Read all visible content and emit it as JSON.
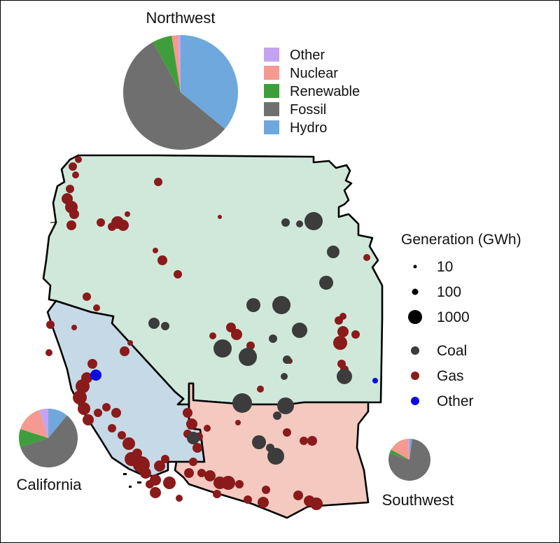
{
  "regions": {
    "northwest": {
      "label": "Northwest",
      "fill": "#cfe8da"
    },
    "california": {
      "label": "California",
      "fill": "#c6d9e6"
    },
    "southwest": {
      "label": "Southwest",
      "fill": "#f3c9c0"
    }
  },
  "fuel_legend": {
    "items": [
      {
        "label": "Other",
        "color": "#c5a3f2"
      },
      {
        "label": "Nuclear",
        "color": "#f59a90"
      },
      {
        "label": "Renewable",
        "color": "#3f9e3c"
      },
      {
        "label": "Fossil",
        "color": "#6f6f6f"
      },
      {
        "label": "Hydro",
        "color": "#6fa8dc"
      }
    ]
  },
  "plant_legend": {
    "title": "Generation (GWh)",
    "sizes": [
      {
        "label": "10",
        "gwh": 10
      },
      {
        "label": "100",
        "gwh": 100
      },
      {
        "label": "1000",
        "gwh": 1000
      }
    ],
    "types": [
      {
        "label": "Coal",
        "color": "#3c3c3c"
      },
      {
        "label": "Gas",
        "color": "#8b1a1a"
      },
      {
        "label": "Other",
        "color": "#0a0ae6"
      }
    ]
  },
  "pies": {
    "northwest": {
      "title": "Northwest",
      "shares": {
        "Hydro": 36,
        "Fossil": 56,
        "Renewable": 5.5,
        "Nuclear": 1.8,
        "Other": 0.7
      }
    },
    "california": {
      "title": "California",
      "shares": {
        "Hydro": 11,
        "Fossil": 59,
        "Renewable": 10,
        "Nuclear": 15,
        "Other": 5
      }
    },
    "southwest": {
      "title": "Southwest",
      "shares": {
        "Hydro": 2,
        "Fossil": 78,
        "Renewable": 3,
        "Nuclear": 16,
        "Other": 1
      }
    }
  }
}
